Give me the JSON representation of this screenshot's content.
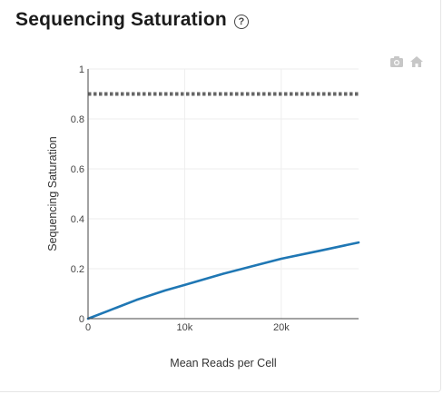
{
  "header": {
    "title": "Sequencing Saturation",
    "help_icon": "question-circle-icon"
  },
  "modebar": {
    "icons": [
      "camera-icon",
      "home-icon"
    ],
    "color": "#c7c7c7"
  },
  "chart_data": {
    "type": "line",
    "xlabel": "Mean Reads per Cell",
    "ylabel": "Sequencing Saturation",
    "xlim": [
      0,
      28000
    ],
    "ylim": [
      0,
      1
    ],
    "x_ticks": [
      {
        "value": 0,
        "label": "0"
      },
      {
        "value": 10000,
        "label": "10k"
      },
      {
        "value": 20000,
        "label": "20k"
      }
    ],
    "y_ticks": [
      {
        "value": 0,
        "label": "0"
      },
      {
        "value": 0.2,
        "label": "0.2"
      },
      {
        "value": 0.4,
        "label": "0.4"
      },
      {
        "value": 0.6,
        "label": "0.6"
      },
      {
        "value": 0.8,
        "label": "0.8"
      },
      {
        "value": 1,
        "label": "1"
      }
    ],
    "grid": true,
    "series": [
      {
        "color": "#1f77b4",
        "x": [
          0,
          2000,
          5000,
          8000,
          10000,
          14000,
          17000,
          20000,
          24000,
          28000
        ],
        "y": [
          0,
          0.03,
          0.075,
          0.113,
          0.135,
          0.18,
          0.21,
          0.24,
          0.272,
          0.305
        ]
      }
    ],
    "reference_line": {
      "y": 0.9,
      "style": "dotted",
      "color": "#666666"
    }
  }
}
